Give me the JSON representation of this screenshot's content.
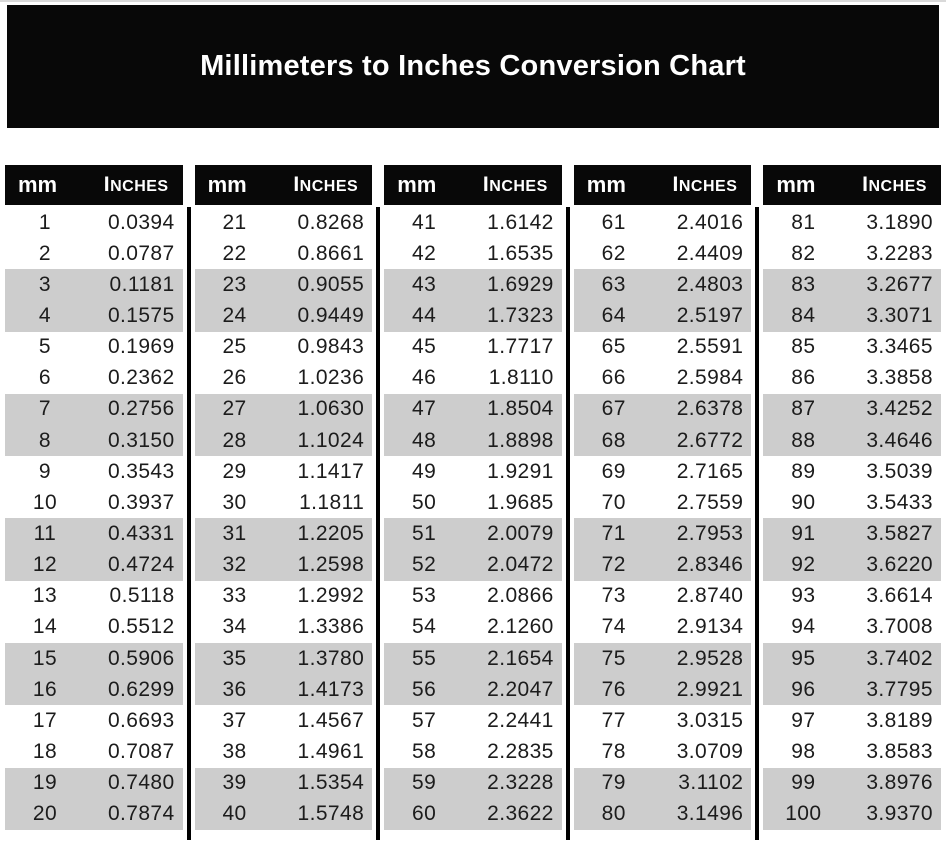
{
  "banner": {
    "title": "Millimeters to Inches Conversion Chart"
  },
  "table": {
    "header": {
      "mm_label": "mm",
      "inches_label": "Inches"
    },
    "colors": {
      "banner_bg": "#080808",
      "header_bg": "#080808",
      "header_text": "#ffffff",
      "shaded_row": "#cdcdcd",
      "plain_row": "#ffffff",
      "body_text": "#1c1c1c",
      "divider": "#000000"
    }
  },
  "chart_data": {
    "type": "table",
    "title": "Millimeters to Inches Conversion Chart",
    "columns": [
      "mm",
      "Inches"
    ],
    "layout": {
      "column_groups": 5,
      "rows_per_group": 20,
      "reading_order": "top-to-bottom then left-to-right",
      "row_shading": "alternating pairs: two white rows, two gray rows"
    },
    "column_groups": [
      {
        "rows": [
          [
            1,
            "0.0394"
          ],
          [
            2,
            "0.0787"
          ],
          [
            3,
            "0.1181"
          ],
          [
            4,
            "0.1575"
          ],
          [
            5,
            "0.1969"
          ],
          [
            6,
            "0.2362"
          ],
          [
            7,
            "0.2756"
          ],
          [
            8,
            "0.3150"
          ],
          [
            9,
            "0.3543"
          ],
          [
            10,
            "0.3937"
          ],
          [
            11,
            "0.4331"
          ],
          [
            12,
            "0.4724"
          ],
          [
            13,
            "0.5118"
          ],
          [
            14,
            "0.5512"
          ],
          [
            15,
            "0.5906"
          ],
          [
            16,
            "0.6299"
          ],
          [
            17,
            "0.6693"
          ],
          [
            18,
            "0.7087"
          ],
          [
            19,
            "0.7480"
          ],
          [
            20,
            "0.7874"
          ]
        ]
      },
      {
        "rows": [
          [
            21,
            "0.8268"
          ],
          [
            22,
            "0.8661"
          ],
          [
            23,
            "0.9055"
          ],
          [
            24,
            "0.9449"
          ],
          [
            25,
            "0.9843"
          ],
          [
            26,
            "1.0236"
          ],
          [
            27,
            "1.0630"
          ],
          [
            28,
            "1.1024"
          ],
          [
            29,
            "1.1417"
          ],
          [
            30,
            "1.1811"
          ],
          [
            31,
            "1.2205"
          ],
          [
            32,
            "1.2598"
          ],
          [
            33,
            "1.2992"
          ],
          [
            34,
            "1.3386"
          ],
          [
            35,
            "1.3780"
          ],
          [
            36,
            "1.4173"
          ],
          [
            37,
            "1.4567"
          ],
          [
            38,
            "1.4961"
          ],
          [
            39,
            "1.5354"
          ],
          [
            40,
            "1.5748"
          ]
        ]
      },
      {
        "rows": [
          [
            41,
            "1.6142"
          ],
          [
            42,
            "1.6535"
          ],
          [
            43,
            "1.6929"
          ],
          [
            44,
            "1.7323"
          ],
          [
            45,
            "1.7717"
          ],
          [
            46,
            "1.8110"
          ],
          [
            47,
            "1.8504"
          ],
          [
            48,
            "1.8898"
          ],
          [
            49,
            "1.9291"
          ],
          [
            50,
            "1.9685"
          ],
          [
            51,
            "2.0079"
          ],
          [
            52,
            "2.0472"
          ],
          [
            53,
            "2.0866"
          ],
          [
            54,
            "2.1260"
          ],
          [
            55,
            "2.1654"
          ],
          [
            56,
            "2.2047"
          ],
          [
            57,
            "2.2441"
          ],
          [
            58,
            "2.2835"
          ],
          [
            59,
            "2.3228"
          ],
          [
            60,
            "2.3622"
          ]
        ]
      },
      {
        "rows": [
          [
            61,
            "2.4016"
          ],
          [
            62,
            "2.4409"
          ],
          [
            63,
            "2.4803"
          ],
          [
            64,
            "2.5197"
          ],
          [
            65,
            "2.5591"
          ],
          [
            66,
            "2.5984"
          ],
          [
            67,
            "2.6378"
          ],
          [
            68,
            "2.6772"
          ],
          [
            69,
            "2.7165"
          ],
          [
            70,
            "2.7559"
          ],
          [
            71,
            "2.7953"
          ],
          [
            72,
            "2.8346"
          ],
          [
            73,
            "2.8740"
          ],
          [
            74,
            "2.9134"
          ],
          [
            75,
            "2.9528"
          ],
          [
            76,
            "2.9921"
          ],
          [
            77,
            "3.0315"
          ],
          [
            78,
            "3.0709"
          ],
          [
            79,
            "3.1102"
          ],
          [
            80,
            "3.1496"
          ]
        ]
      },
      {
        "rows": [
          [
            81,
            "3.1890"
          ],
          [
            82,
            "3.2283"
          ],
          [
            83,
            "3.2677"
          ],
          [
            84,
            "3.3071"
          ],
          [
            85,
            "3.3465"
          ],
          [
            86,
            "3.3858"
          ],
          [
            87,
            "3.4252"
          ],
          [
            88,
            "3.4646"
          ],
          [
            89,
            "3.5039"
          ],
          [
            90,
            "3.5433"
          ],
          [
            91,
            "3.5827"
          ],
          [
            92,
            "3.6220"
          ],
          [
            93,
            "3.6614"
          ],
          [
            94,
            "3.7008"
          ],
          [
            95,
            "3.7402"
          ],
          [
            96,
            "3.7795"
          ],
          [
            97,
            "3.8189"
          ],
          [
            98,
            "3.8583"
          ],
          [
            99,
            "3.8976"
          ],
          [
            100,
            "3.9370"
          ]
        ]
      }
    ]
  }
}
